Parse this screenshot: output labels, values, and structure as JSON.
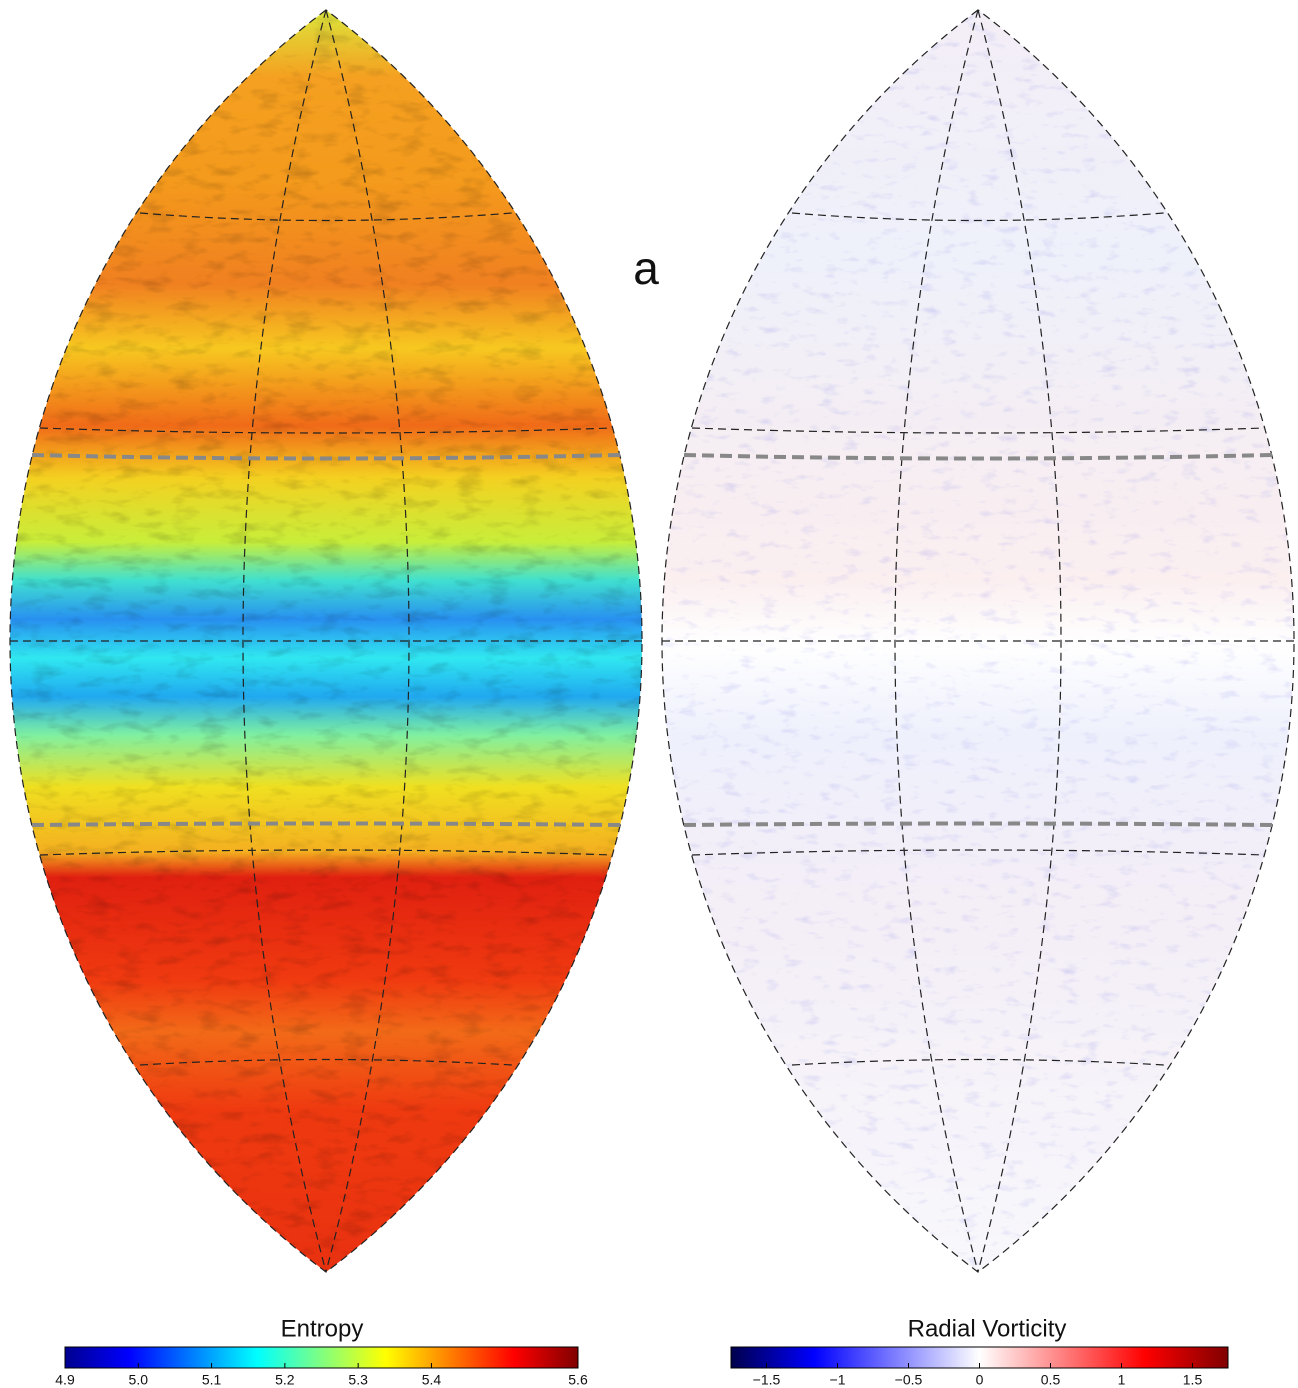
{
  "panel_label": "a",
  "colorbars": [
    {
      "title": "Entropy",
      "colormap": "jet",
      "range": [
        4.9,
        5.6
      ],
      "ticks": [
        4.9,
        {
          "value": 5,
          "label": "5.0"
        },
        5.1,
        5.2,
        5.3,
        5.4,
        5.6
      ]
    },
    {
      "title": "Radial Vorticity",
      "colormap": "seismic",
      "range": [
        -1.75,
        1.75
      ],
      "ticks": [
        {
          "value": -1.5,
          "label": "−1.5"
        },
        {
          "value": -1,
          "label": "−1"
        },
        {
          "value": -0.5,
          "label": "−0.5"
        },
        0,
        0.5,
        1,
        1.5
      ]
    }
  ]
}
